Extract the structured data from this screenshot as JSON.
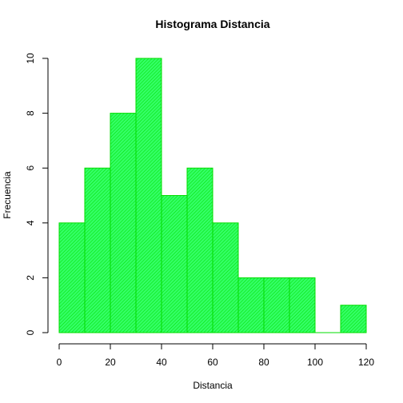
{
  "chart_data": {
    "type": "bar",
    "title": "Histograma Distancia",
    "xlabel": "Distancia",
    "ylabel": "Frecuencia",
    "bins": [
      {
        "start": 0,
        "end": 10,
        "count": 4
      },
      {
        "start": 10,
        "end": 20,
        "count": 6
      },
      {
        "start": 20,
        "end": 30,
        "count": 8
      },
      {
        "start": 30,
        "end": 40,
        "count": 10
      },
      {
        "start": 40,
        "end": 50,
        "count": 5
      },
      {
        "start": 50,
        "end": 60,
        "count": 6
      },
      {
        "start": 60,
        "end": 70,
        "count": 4
      },
      {
        "start": 70,
        "end": 80,
        "count": 2
      },
      {
        "start": 80,
        "end": 90,
        "count": 2
      },
      {
        "start": 90,
        "end": 100,
        "count": 2
      },
      {
        "start": 100,
        "end": 110,
        "count": 0
      },
      {
        "start": 110,
        "end": 120,
        "count": 1
      }
    ],
    "xlim": [
      0,
      120
    ],
    "ylim": [
      0,
      10
    ],
    "x_ticks": [
      0,
      20,
      40,
      60,
      80,
      100,
      120
    ],
    "y_ticks": [
      0,
      2,
      4,
      6,
      8,
      10
    ],
    "bar_fill_color": "#33ff66",
    "bar_border_color": "#00dd00",
    "grid": false
  }
}
